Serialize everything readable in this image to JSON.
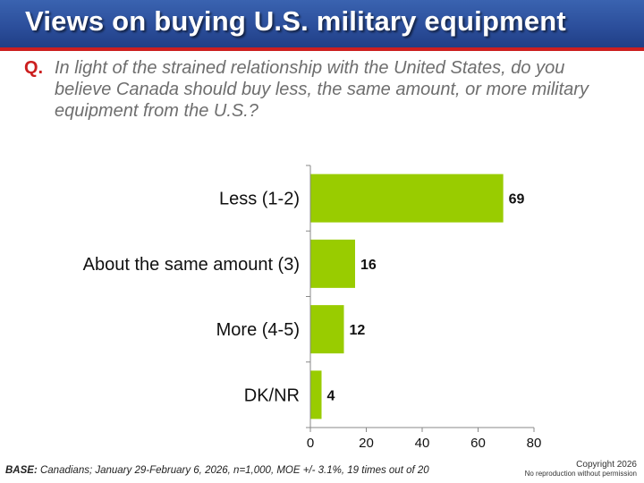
{
  "title": "Views on buying U.S. military equipment",
  "question": {
    "label": "Q.",
    "text": "In light of the strained relationship with the United States, do you believe Canada should buy less, the same amount, or more military equipment from the U.S.?"
  },
  "footer": {
    "base_label": "BASE:",
    "base_text": " Canadians; January 29-February 6, 2026, n=1,000, MOE +/- 3.1%, 19 times out of 20",
    "copyright": "Copyright 2026",
    "reproduction": "No reproduction without permission"
  },
  "colors": {
    "bar": "#99cc00",
    "title_bar": "#2c4f9c",
    "accent_red": "#cc1f1f"
  },
  "chart_data": {
    "type": "bar",
    "orientation": "horizontal",
    "categories": [
      "Less (1-2)",
      "About the same amount (3)",
      "More (4-5)",
      "DK/NR"
    ],
    "values": [
      69,
      16,
      12,
      4
    ],
    "data_labels": [
      "69",
      "16",
      "12",
      "4"
    ],
    "xlim": [
      0,
      80
    ],
    "xticks": [
      "0",
      "20",
      "40",
      "60",
      "80"
    ],
    "xlabel": "",
    "ylabel": "",
    "grid": false,
    "legend": "none"
  }
}
